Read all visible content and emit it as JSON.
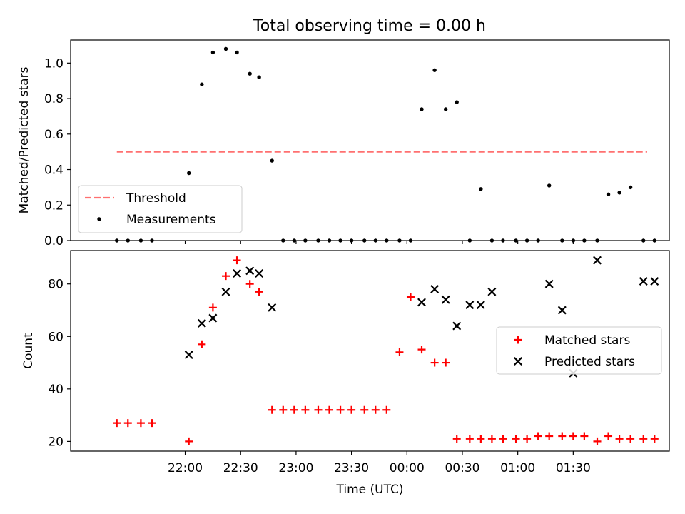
{
  "figure": {
    "title": "Total observing time = 0.00 h"
  },
  "chart_data": [
    {
      "type": "scatter",
      "panel": "top",
      "ylabel": "Matched/Predicted stars",
      "ylim": [
        0,
        1.13
      ],
      "xlim_minutes_from_22_00": [
        -62,
        262
      ],
      "yticks": [
        0.0,
        0.2,
        0.4,
        0.6,
        0.8,
        1.0
      ],
      "ytick_labels": [
        "0.0",
        "0.2",
        "0.4",
        "0.6",
        "0.8",
        "1.0"
      ],
      "threshold": {
        "name": "Threshold",
        "y": 0.5,
        "x_range": [
          -37,
          250
        ],
        "color": "#ff7070",
        "style": "dashed"
      },
      "series": [
        {
          "name": "Measurements",
          "color": "#000000",
          "marker": "dot",
          "x": [
            -37,
            -31,
            -24,
            -18,
            2,
            9,
            15,
            22,
            28,
            35,
            40,
            47,
            53,
            59,
            65,
            72,
            78,
            84,
            90,
            97,
            103,
            109,
            116,
            122,
            128,
            135,
            141,
            147,
            154,
            160,
            166,
            172,
            179,
            185,
            191,
            197,
            204,
            210,
            216,
            223,
            229,
            235,
            241,
            248,
            254
          ],
          "y": [
            0,
            0,
            0,
            0,
            0.38,
            0.88,
            1.06,
            1.08,
            1.06,
            0.94,
            0.92,
            0.45,
            0,
            0,
            0,
            0,
            0,
            0,
            0,
            0,
            0,
            0,
            0,
            0,
            0.74,
            0.96,
            0.74,
            0.78,
            0,
            0.29,
            0,
            0,
            0,
            0,
            0,
            0.31,
            0,
            0,
            0,
            0,
            0.26,
            0.27,
            0.3,
            0,
            0
          ]
        }
      ],
      "legend": {
        "position": "lower-left"
      },
      "grid": false
    },
    {
      "type": "scatter",
      "panel": "bottom",
      "xlabel": "Time (UTC)",
      "ylabel": "Count",
      "ylim": [
        16.3,
        92.7
      ],
      "xlim_minutes_from_22_00": [
        -62,
        262
      ],
      "yticks": [
        20,
        40,
        60,
        80
      ],
      "ytick_labels": [
        "20",
        "40",
        "60",
        "80"
      ],
      "xticks_minutes_from_22_00": [
        0,
        30,
        60,
        90,
        120,
        150,
        180,
        210
      ],
      "xtick_labels": [
        "22:00",
        "22:30",
        "23:00",
        "23:30",
        "00:00",
        "00:30",
        "01:00",
        "01:30"
      ],
      "series": [
        {
          "name": "Matched stars",
          "color": "#ff0000",
          "marker": "plus",
          "x": [
            -37,
            -31,
            -24,
            -18,
            2,
            9,
            15,
            22,
            28,
            35,
            40,
            47,
            53,
            59,
            65,
            72,
            78,
            84,
            90,
            97,
            103,
            109,
            116,
            122,
            128,
            135,
            141,
            147,
            154,
            160,
            166,
            172,
            179,
            185,
            191,
            197,
            204,
            210,
            216,
            223,
            229,
            235,
            241,
            248,
            254
          ],
          "y": [
            27,
            27,
            27,
            27,
            20,
            57,
            71,
            83,
            89,
            80,
            77,
            32,
            32,
            32,
            32,
            32,
            32,
            32,
            32,
            32,
            32,
            32,
            54,
            75,
            55,
            50,
            50,
            21,
            21,
            21,
            21,
            21,
            21,
            21,
            22,
            22,
            22,
            22,
            22,
            20,
            22,
            21,
            21,
            21,
            21
          ]
        },
        {
          "name": "Predicted stars",
          "color": "#000000",
          "marker": "x",
          "x": [
            2,
            9,
            15,
            22,
            28,
            35,
            40,
            47,
            128,
            135,
            141,
            147,
            154,
            160,
            166,
            197,
            204,
            210,
            223,
            248,
            254
          ],
          "y": [
            53,
            65,
            67,
            77,
            84,
            85,
            84,
            71,
            73,
            78,
            74,
            64,
            72,
            72,
            77,
            80,
            70,
            46,
            89,
            81,
            81
          ]
        }
      ],
      "legend": {
        "position": "center-right"
      },
      "grid": false
    }
  ]
}
